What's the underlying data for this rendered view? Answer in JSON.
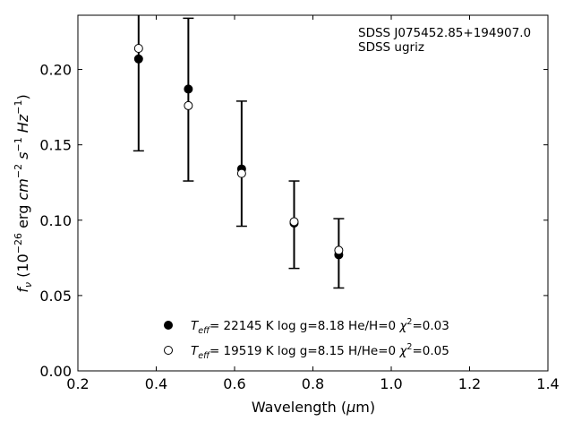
{
  "chart_data": {
    "type": "scatter",
    "annotation": [
      "SDSS J075452.85+194907.0",
      "SDSS ugriz"
    ],
    "xlabel": {
      "main": "Wavelength (",
      "mu": "μ",
      "unit": "m)"
    },
    "ylabel": {
      "f": "f",
      "nu": "ν",
      "open": " (10",
      "e1": "−26",
      "erg": " erg ",
      "cm": "cm",
      "e2": "−2",
      "s": " s",
      "e3": "−1",
      "hz": " Hz",
      "e4": "−1",
      "close": ")"
    },
    "xlim": [
      0.2,
      1.4
    ],
    "ylim": [
      0.0,
      0.236
    ],
    "xticks": [
      0.2,
      0.4,
      0.6,
      0.8,
      1.0,
      1.2,
      1.4
    ],
    "xtick_labels": [
      "0.2",
      "0.4",
      "0.6",
      "0.8",
      "1.0",
      "1.2",
      "1.4"
    ],
    "yticks": [
      0.0,
      0.05,
      0.1,
      0.15,
      0.2
    ],
    "ytick_labels": [
      "0.00",
      "0.05",
      "0.10",
      "0.15",
      "0.20"
    ],
    "observed": {
      "x": [
        0.355,
        0.482,
        0.618,
        0.752,
        0.866
      ],
      "y_low": [
        0.146,
        0.126,
        0.096,
        0.068,
        0.055
      ],
      "y_high": [
        0.24,
        0.234,
        0.179,
        0.126,
        0.101
      ]
    },
    "series": [
      {
        "marker": "filled",
        "color": "#000000",
        "x": [
          0.355,
          0.482,
          0.618,
          0.752,
          0.866
        ],
        "y": [
          0.207,
          0.187,
          0.134,
          0.098,
          0.077
        ],
        "legend": {
          "T": "T",
          "sub": "eff",
          "rest": "= 22145 K  log g=8.18  He/H=0  ",
          "chi": "χ",
          "sup": "2",
          "end": "=0.03"
        }
      },
      {
        "marker": "open",
        "color": "#000000",
        "x": [
          0.355,
          0.482,
          0.618,
          0.752,
          0.866
        ],
        "y": [
          0.214,
          0.176,
          0.131,
          0.099,
          0.08
        ],
        "legend": {
          "T": "T",
          "sub": "eff",
          "rest": "= 19519 K  log g=8.15  H/He=0  ",
          "chi": "χ",
          "sup": "2",
          "end": "=0.05"
        }
      }
    ],
    "grid": false,
    "legend_position": "lower-center"
  }
}
